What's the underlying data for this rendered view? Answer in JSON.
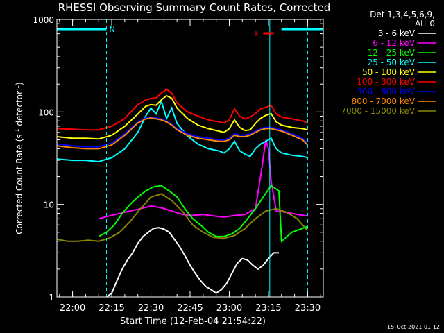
{
  "chart_data": {
    "type": "line",
    "title": "RHESSI Observing Summary Count Rates, Corrected",
    "xlabel": "Start Time (12-Feb-04 21:54:22)",
    "ylabel_main": "Corrected Count Rate (s",
    "ylabel_sup1": "-1",
    "ylabel_mid": " detector",
    "ylabel_sup2": "-1",
    "ylabel_end": ")",
    "yscale": "log",
    "ylim": [
      1,
      1000
    ],
    "xlim_minutes": [
      -6,
      96
    ],
    "y_ticks": [
      {
        "value": 1,
        "label": "1"
      },
      {
        "value": 10,
        "label": "10"
      },
      {
        "value": 100,
        "label": "100"
      },
      {
        "value": 1000,
        "label": "1000"
      }
    ],
    "x_ticks": [
      {
        "minute": 0,
        "label": "22:00"
      },
      {
        "minute": 15,
        "label": "22:15"
      },
      {
        "minute": 30,
        "label": "22:30"
      },
      {
        "minute": 45,
        "label": "22:45"
      },
      {
        "minute": 60,
        "label": "23:00"
      },
      {
        "minute": 75,
        "label": "23:15"
      },
      {
        "minute": 90,
        "label": "23:30"
      }
    ],
    "legend_header_1": "Det 1,3,4,5,6,9,",
    "legend_header_2": "Att 0",
    "legend_placement": "right",
    "timestamp": "15-Oct-2021 01:12",
    "annotations": {
      "night_label": "N",
      "flare_label": "F",
      "night_intervals": [
        [
          -6,
          13
        ],
        [
          80,
          96
        ]
      ],
      "flare_interval": [
        73,
        77
      ],
      "dashed_lines_minutes": [
        13,
        90
      ],
      "solid_lines_minutes": [
        75.5
      ]
    },
    "series": [
      {
        "name": "3 - 6 keV",
        "color": "#ffffff",
        "x": [
          13,
          15,
          17,
          19,
          21,
          23,
          25,
          27,
          29,
          31,
          33,
          35,
          37,
          39,
          41,
          43,
          45,
          47,
          49,
          51,
          53,
          55,
          57,
          59,
          61,
          63,
          65,
          67,
          69,
          71,
          73,
          75,
          77,
          79
        ],
        "y": [
          1,
          1.1,
          1.5,
          2,
          2.5,
          3,
          3.8,
          4.5,
          5,
          5.5,
          5.6,
          5.4,
          5,
          4.2,
          3.5,
          2.8,
          2.2,
          1.8,
          1.5,
          1.3,
          1.2,
          1.1,
          1.2,
          1.4,
          1.8,
          2.3,
          2.6,
          2.5,
          2.2,
          2.0,
          2.2,
          2.6,
          3,
          3
        ]
      },
      {
        "name": "6 - 12 keV",
        "color": "#ff00ff",
        "x": [
          10,
          14,
          18,
          22,
          26,
          30,
          34,
          38,
          42,
          46,
          50,
          54,
          58,
          62,
          66,
          70,
          72,
          74,
          75,
          76,
          78,
          82,
          86,
          90
        ],
        "y": [
          7,
          7.5,
          8,
          8.5,
          9,
          9.6,
          9.2,
          8.5,
          7.8,
          7.6,
          7.8,
          7.5,
          7.3,
          7.6,
          7.8,
          9,
          20,
          50,
          40,
          18,
          8.5,
          8.2,
          7.8,
          7.5
        ]
      },
      {
        "name": "12 - 25 keV",
        "color": "#00ff00",
        "x": [
          10,
          13,
          16,
          19,
          22,
          25,
          28,
          31,
          34,
          37,
          40,
          43,
          46,
          49,
          52,
          55,
          58,
          61,
          64,
          67,
          70,
          73,
          76,
          79,
          80,
          84,
          88,
          90
        ],
        "y": [
          4.5,
          5,
          6,
          8,
          10,
          12,
          14,
          15.5,
          16,
          14,
          12,
          9,
          7,
          6,
          5,
          4.5,
          4.5,
          4.8,
          5.5,
          7,
          9,
          12,
          16,
          14,
          4,
          5,
          5.5,
          5.8
        ]
      },
      {
        "name": "25 - 50 keV",
        "color": "#00ffff",
        "x": [
          -6,
          0,
          5,
          10,
          15,
          20,
          25,
          28,
          30,
          32,
          34,
          36,
          38,
          40,
          44,
          48,
          52,
          56,
          58,
          60,
          62,
          64,
          66,
          68,
          70,
          72,
          74,
          76,
          78,
          80,
          84,
          88,
          90
        ],
        "y": [
          31,
          30,
          30,
          29,
          32,
          40,
          60,
          90,
          110,
          95,
          130,
          85,
          110,
          75,
          55,
          45,
          40,
          38,
          36,
          40,
          48,
          38,
          35,
          33,
          40,
          45,
          48,
          52,
          40,
          36,
          34,
          33,
          32
        ]
      },
      {
        "name": "50 - 100 keV",
        "color": "#ffff00",
        "x": [
          -6,
          0,
          5,
          10,
          15,
          20,
          25,
          28,
          30,
          32,
          34,
          36,
          38,
          40,
          44,
          48,
          52,
          56,
          58,
          60,
          62,
          64,
          66,
          68,
          70,
          72,
          74,
          76,
          78,
          80,
          84,
          88,
          90
        ],
        "y": [
          54,
          52,
          52,
          51,
          56,
          70,
          95,
          115,
          120,
          118,
          135,
          150,
          140,
          110,
          85,
          72,
          66,
          62,
          60,
          66,
          82,
          68,
          63,
          64,
          75,
          85,
          92,
          96,
          78,
          72,
          68,
          66,
          64
        ]
      },
      {
        "name": "100 - 300 keV",
        "color": "#ff0000",
        "x": [
          -6,
          0,
          5,
          10,
          15,
          20,
          25,
          28,
          30,
          32,
          34,
          36,
          38,
          40,
          44,
          48,
          52,
          56,
          58,
          60,
          62,
          64,
          66,
          68,
          70,
          72,
          74,
          76,
          78,
          80,
          84,
          88,
          90
        ],
        "y": [
          66,
          65,
          64,
          64,
          70,
          85,
          120,
          135,
          140,
          142,
          160,
          175,
          160,
          125,
          100,
          90,
          82,
          78,
          76,
          82,
          108,
          90,
          84,
          88,
          96,
          108,
          112,
          118,
          95,
          88,
          84,
          80,
          76
        ]
      },
      {
        "name": "300 - 800 keV",
        "color": "#0000ff",
        "x": [
          -6,
          0,
          5,
          10,
          15,
          20,
          25,
          28,
          30,
          32,
          34,
          36,
          38,
          40,
          44,
          48,
          52,
          56,
          58,
          60,
          62,
          64,
          66,
          68,
          70,
          72,
          74,
          76,
          78,
          80,
          84,
          88,
          90
        ],
        "y": [
          45,
          43,
          42,
          42,
          46,
          58,
          78,
          86,
          88,
          86,
          84,
          80,
          74,
          66,
          58,
          54,
          52,
          50,
          50,
          52,
          58,
          56,
          56,
          58,
          62,
          66,
          68,
          68,
          66,
          64,
          58,
          52,
          46
        ]
      },
      {
        "name": "800 - 7000 keV",
        "color": "#ff8800",
        "x": [
          -6,
          0,
          5,
          10,
          15,
          20,
          25,
          28,
          30,
          32,
          34,
          36,
          38,
          40,
          44,
          48,
          52,
          56,
          58,
          60,
          62,
          64,
          66,
          68,
          70,
          72,
          74,
          76,
          78,
          80,
          84,
          88,
          90
        ],
        "y": [
          43,
          41,
          40,
          40,
          44,
          56,
          76,
          84,
          86,
          84,
          82,
          78,
          72,
          64,
          56,
          52,
          50,
          48,
          48,
          50,
          56,
          54,
          54,
          56,
          60,
          64,
          66,
          66,
          64,
          62,
          56,
          50,
          44
        ]
      },
      {
        "name": "7000 - 15000 keV",
        "color": "#888800",
        "x": [
          -6,
          -2,
          2,
          6,
          10,
          14,
          18,
          22,
          26,
          30,
          34,
          38,
          42,
          46,
          50,
          54,
          58,
          62,
          66,
          70,
          74,
          78,
          82,
          86,
          90
        ],
        "y": [
          4.2,
          4,
          4,
          4.1,
          4,
          4.3,
          5,
          6.5,
          9,
          12,
          13,
          11,
          8.5,
          6,
          5,
          4.4,
          4.3,
          4.6,
          5.5,
          7,
          8.5,
          9,
          8.2,
          7,
          5.2
        ]
      }
    ]
  }
}
